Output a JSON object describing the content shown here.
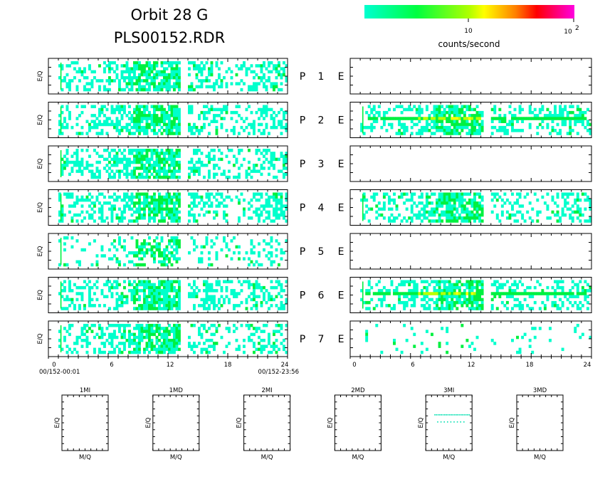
{
  "header": {
    "title_line1": "Orbit 28 G",
    "title_line2": "PLS00152.RDR"
  },
  "colorbar": {
    "label": "counts/second",
    "tick_10": "10",
    "tick_100_base": "10",
    "tick_100_exp": "2",
    "colors": [
      "#00ffd0",
      "#00ff40",
      "#b0ff00",
      "#ffff00",
      "#ff8000",
      "#ff0000",
      "#ff00c0"
    ]
  },
  "axes": {
    "ylabel": "E/Q",
    "x_ticks": [
      "0",
      "6",
      "12",
      "18",
      "24"
    ],
    "start_label": "00/152-00:01",
    "end_label": "00/152-23:56"
  },
  "chart_data": {
    "type": "heatmap",
    "x_range": [
      0,
      24
    ],
    "color_scale": "log counts/second",
    "rows": [
      {
        "p": "P",
        "n": "1",
        "e": "E",
        "left_gap": [
          13.2,
          14.0
        ],
        "right": "empty"
      },
      {
        "p": "P",
        "n": "2",
        "e": "E",
        "left_gap": [
          13.2,
          14.0
        ],
        "right": "band"
      },
      {
        "p": "P",
        "n": "3",
        "e": "E",
        "left_gap": [
          13.2,
          14.0
        ],
        "right": "empty"
      },
      {
        "p": "P",
        "n": "4",
        "e": "E",
        "left_gap": [
          13.2,
          14.0
        ],
        "right": "dense"
      },
      {
        "p": "P",
        "n": "5",
        "e": "E",
        "left_gap": [
          13.2,
          14.0
        ],
        "right": "empty"
      },
      {
        "p": "P",
        "n": "6",
        "e": "E",
        "left_gap": [
          13.2,
          14.0
        ],
        "right": "band"
      },
      {
        "p": "P",
        "n": "7",
        "e": "E",
        "left_gap": [
          13.2,
          14.0
        ],
        "right": "sparse"
      }
    ],
    "mass_panels": [
      {
        "title": "1MI",
        "ylabel": "E/Q",
        "xlabel": "M/Q",
        "has_data": false
      },
      {
        "title": "1MD",
        "ylabel": "E/Q",
        "xlabel": "M/Q",
        "has_data": false
      },
      {
        "title": "2MI",
        "ylabel": "E/Q",
        "xlabel": "M/Q",
        "has_data": false
      },
      {
        "title": "2MD",
        "ylabel": "E/Q",
        "xlabel": "M/Q",
        "has_data": false
      },
      {
        "title": "3MI",
        "ylabel": "E/Q",
        "xlabel": "M/Q",
        "has_data": true
      },
      {
        "title": "3MD",
        "ylabel": "E/Q",
        "xlabel": "M/Q",
        "has_data": false
      }
    ]
  }
}
